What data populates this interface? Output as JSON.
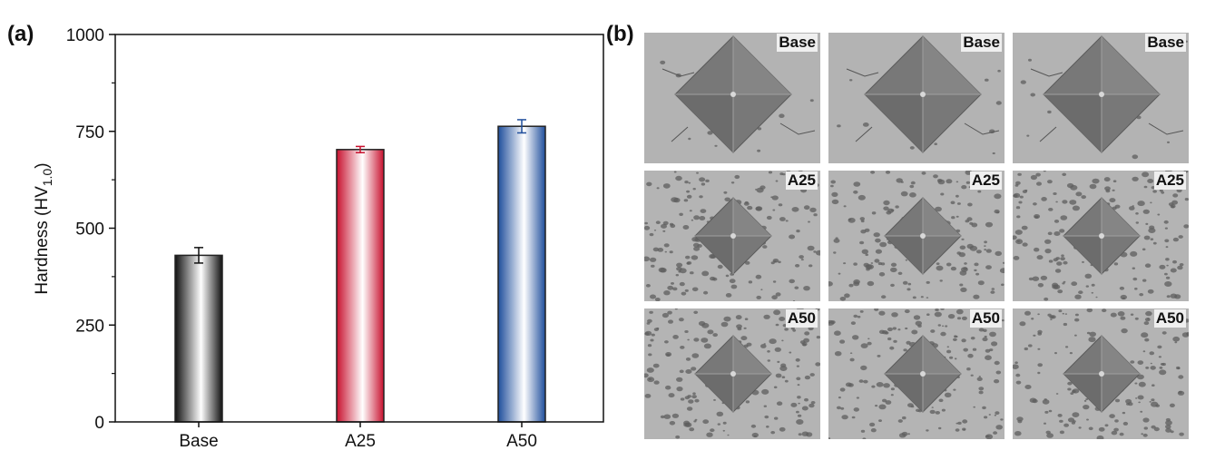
{
  "panels": {
    "a_label": "(a)",
    "b_label": "(b)"
  },
  "chart_data": {
    "type": "bar",
    "categories": [
      "Base",
      "A25",
      "A50"
    ],
    "values": [
      430,
      703,
      763
    ],
    "errors": [
      20,
      8,
      17
    ],
    "ylabel_main": "Hardness (HV",
    "ylabel_sub": "1.0",
    "ylabel_tail": ")",
    "ylim": [
      0,
      1000
    ],
    "yticks": [
      0,
      250,
      500,
      750,
      1000
    ],
    "bar_colors": [
      "#111111",
      "#c8102e",
      "#1f4e9c"
    ],
    "grid": false
  },
  "micrographs": {
    "rows": [
      {
        "label": "Base",
        "cells": [
          "Base",
          "Base",
          "Base"
        ]
      },
      {
        "label": "A25",
        "cells": [
          "A25",
          "A25",
          "A25"
        ]
      },
      {
        "label": "A50",
        "cells": [
          "A50",
          "A50",
          "A50"
        ]
      }
    ]
  }
}
